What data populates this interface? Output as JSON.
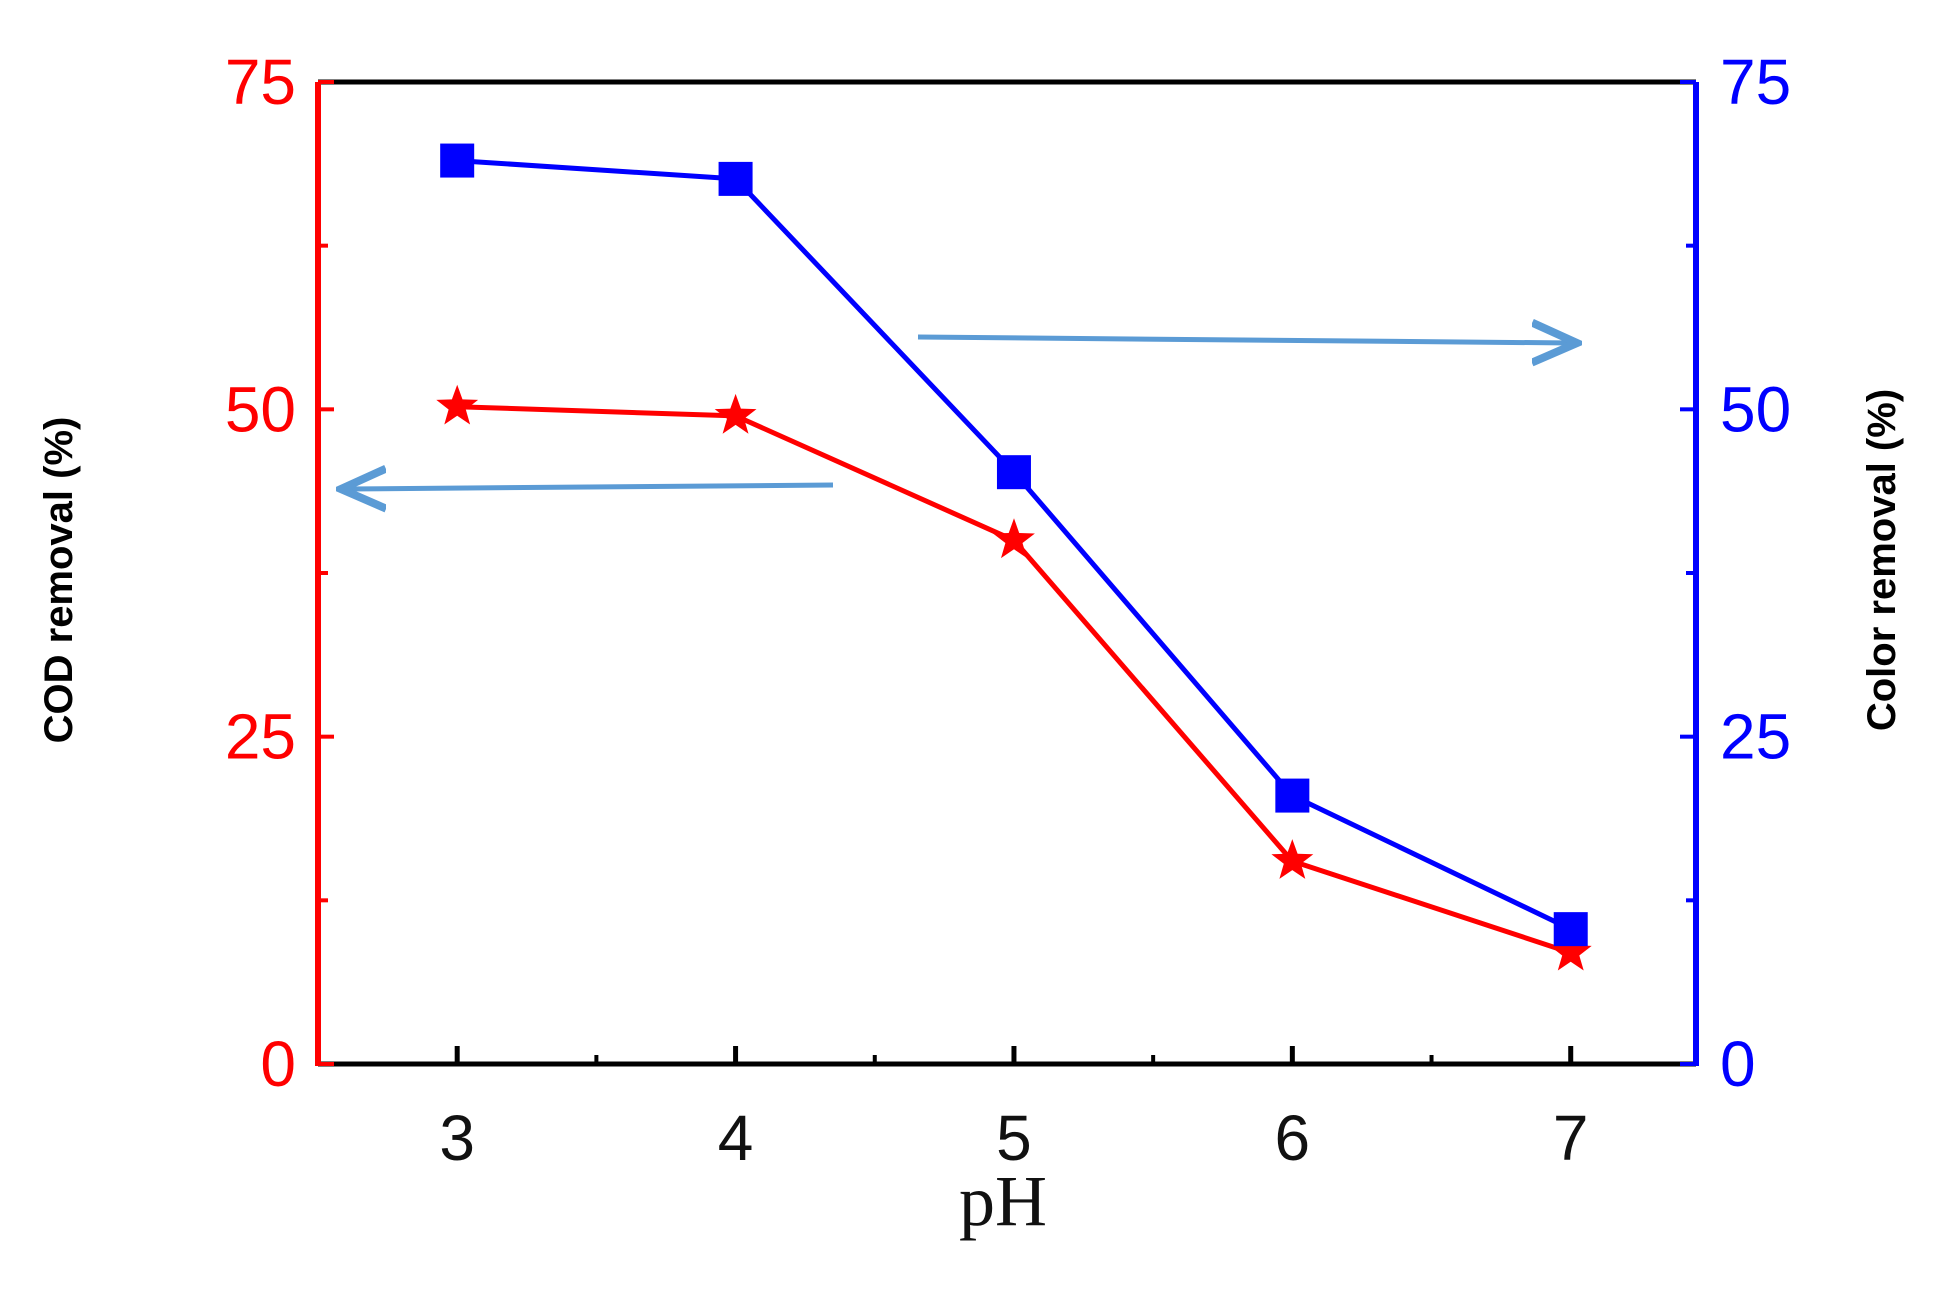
{
  "chart_data": {
    "type": "line",
    "title": "",
    "xlabel": "pH",
    "x": [
      3,
      4,
      5,
      6,
      7
    ],
    "x_ticks": [
      "3",
      "4",
      "5",
      "6",
      "7"
    ],
    "xlim": [
      2.5,
      7.45
    ],
    "y_left": {
      "label": "COD removal (%)",
      "ticks": [
        "0",
        "25",
        "50",
        "75"
      ],
      "ylim": [
        0,
        75
      ],
      "color": "#ff0000"
    },
    "y_right": {
      "label": "Color removal  (%)",
      "ticks": [
        "0",
        "25",
        "50",
        "75"
      ],
      "ylim": [
        0,
        75
      ],
      "color": "#0000ff"
    },
    "series": [
      {
        "axis": "left",
        "marker": "star",
        "color": "#ff0000",
        "values": [
          50.2,
          49.5,
          40.0,
          15.5,
          8.5
        ]
      },
      {
        "axis": "right",
        "marker": "square",
        "color": "#0000ff",
        "values": [
          69.0,
          67.6,
          45.2,
          20.5,
          10.3
        ]
      }
    ],
    "annotations": [
      {
        "type": "arrow",
        "direction": "left",
        "points_to": "left-axis",
        "color": "#5b9bd5"
      },
      {
        "type": "arrow",
        "direction": "right",
        "points_to": "right-axis",
        "color": "#5b9bd5"
      }
    ],
    "grid": false,
    "legend": "none"
  }
}
